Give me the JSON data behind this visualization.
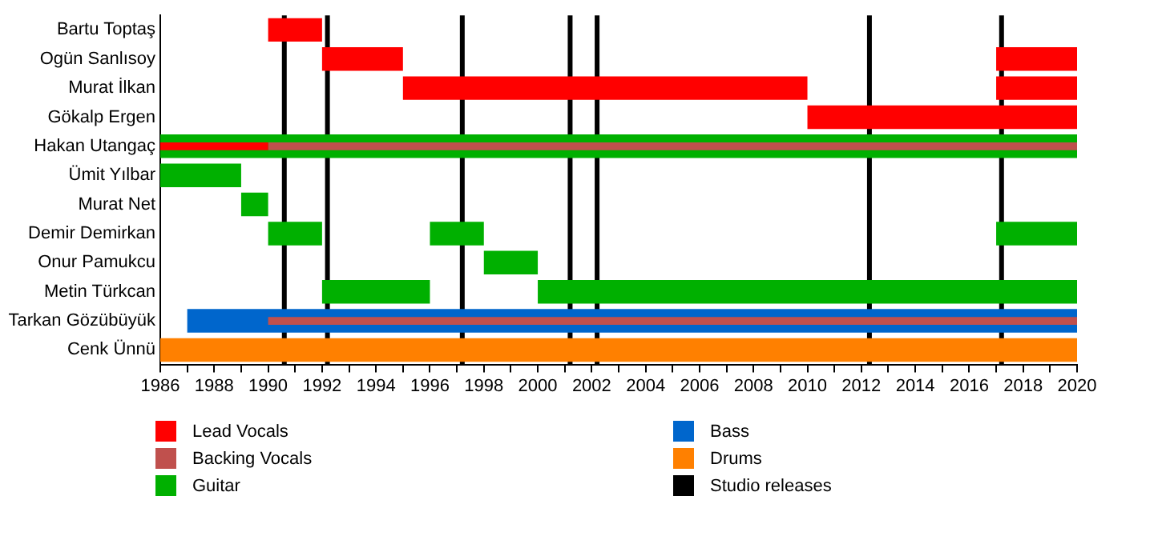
{
  "chart_data": {
    "type": "bar",
    "orientation": "horizontal",
    "categories": [
      "Bartu Toptaş",
      "Ogün Sanlısoy",
      "Murat İlkan",
      "Gökalp Ergen",
      "Hakan Utangaç",
      "Ümit Yılbar",
      "Murat Net",
      "Demir Demirkan",
      "Onur Pamukcu",
      "Metin Türkcan",
      "Tarkan Gözübüyük",
      "Cenk Ünnü"
    ],
    "series": [
      {
        "name": "Lead Vocals",
        "color": "#ff0000",
        "base": [
          1990,
          1992,
          1995,
          2010,
          1986,
          null,
          null,
          null,
          null,
          null,
          null,
          null
        ],
        "values": [
          2,
          3,
          15,
          10,
          4,
          null,
          null,
          null,
          null,
          null,
          null,
          null
        ]
      },
      {
        "name": "Backing Vocals",
        "color": "#c0504d",
        "base": [
          null,
          null,
          null,
          null,
          1990,
          null,
          null,
          null,
          null,
          null,
          1990,
          null
        ],
        "values": [
          null,
          null,
          null,
          null,
          30,
          null,
          null,
          null,
          null,
          null,
          30,
          null
        ]
      },
      {
        "name": "Guitar",
        "color": "#00b000",
        "base": [
          null,
          null,
          null,
          null,
          1986,
          1986,
          1989,
          1990,
          1998,
          1992,
          null,
          null
        ],
        "values": [
          null,
          null,
          null,
          null,
          34,
          3,
          1,
          2,
          2,
          4,
          null,
          null
        ]
      },
      {
        "name": "Bass",
        "color": "#0066cc",
        "base": [
          null,
          null,
          null,
          null,
          null,
          null,
          null,
          null,
          null,
          null,
          1987,
          null
        ],
        "values": [
          null,
          null,
          null,
          null,
          null,
          null,
          null,
          null,
          null,
          null,
          33,
          null
        ]
      },
      {
        "name": "Drums",
        "color": "#ff8000",
        "base": [
          null,
          null,
          null,
          null,
          null,
          null,
          null,
          null,
          null,
          null,
          null,
          1986
        ],
        "values": [
          null,
          null,
          null,
          null,
          null,
          null,
          null,
          null,
          null,
          null,
          null,
          34
        ]
      },
      {
        "color": "#ff0000",
        "base": [
          null,
          2017,
          2017,
          null,
          null,
          null,
          null,
          null,
          null,
          null,
          null,
          null
        ],
        "values": [
          null,
          3,
          3,
          null,
          null,
          null,
          null,
          null,
          null,
          null,
          null,
          null
        ]
      },
      {
        "color": "#00b000",
        "base": [
          null,
          null,
          null,
          null,
          null,
          null,
          null,
          1996,
          null,
          2000,
          null,
          null
        ],
        "values": [
          null,
          null,
          null,
          null,
          null,
          null,
          null,
          2,
          null,
          20,
          null,
          null
        ]
      },
      {
        "color": "#00b000",
        "base": [
          null,
          null,
          null,
          null,
          null,
          null,
          null,
          2017,
          null,
          null,
          null,
          null
        ],
        "values": [
          null,
          null,
          null,
          null,
          null,
          null,
          null,
          3,
          null,
          null,
          null,
          null
        ]
      }
    ],
    "xlim": [
      1986,
      2020
    ],
    "xticks": [
      1986,
      {
        "value": 1987,
        "label": null
      },
      1988,
      {
        "value": 1989,
        "label": null
      },
      1990,
      {
        "value": 1991,
        "label": null
      },
      1992,
      {
        "value": 1993,
        "label": null
      },
      1994,
      {
        "value": 1995,
        "label": null
      },
      1996,
      {
        "value": 1997,
        "label": null
      },
      1998,
      {
        "value": 1999,
        "label": null
      },
      2000,
      {
        "value": 2001,
        "label": null
      },
      2002,
      {
        "value": 2003,
        "label": null
      },
      2004,
      {
        "value": 2005,
        "label": null
      },
      2006,
      {
        "value": 2007,
        "label": null
      },
      2008,
      {
        "value": 2009,
        "label": null
      },
      2010,
      {
        "value": 2011,
        "label": null
      },
      2012,
      {
        "value": 2013,
        "label": null
      },
      2014,
      {
        "value": 2015,
        "label": null
      },
      2016,
      {
        "value": 2017,
        "label": null
      },
      2018,
      {
        "value": 2019,
        "label": null
      },
      2020
    ],
    "ref_lines": [
      {
        "axis": "x",
        "value": 1990.6,
        "label": "Studio releases",
        "color": "#000000"
      },
      {
        "axis": "x",
        "value": 1992.2,
        "color": "#000000"
      },
      {
        "axis": "x",
        "value": 1997.2,
        "color": "#000000"
      },
      {
        "axis": "x",
        "value": 2001.2,
        "color": "#000000"
      },
      {
        "axis": "x",
        "value": 2002.2,
        "color": "#000000"
      },
      {
        "axis": "x",
        "value": 2012.3,
        "color": "#000000"
      },
      {
        "axis": "x",
        "value": 2017.2,
        "color": "#000000"
      }
    ],
    "grid": false,
    "legend": "bottom"
  }
}
